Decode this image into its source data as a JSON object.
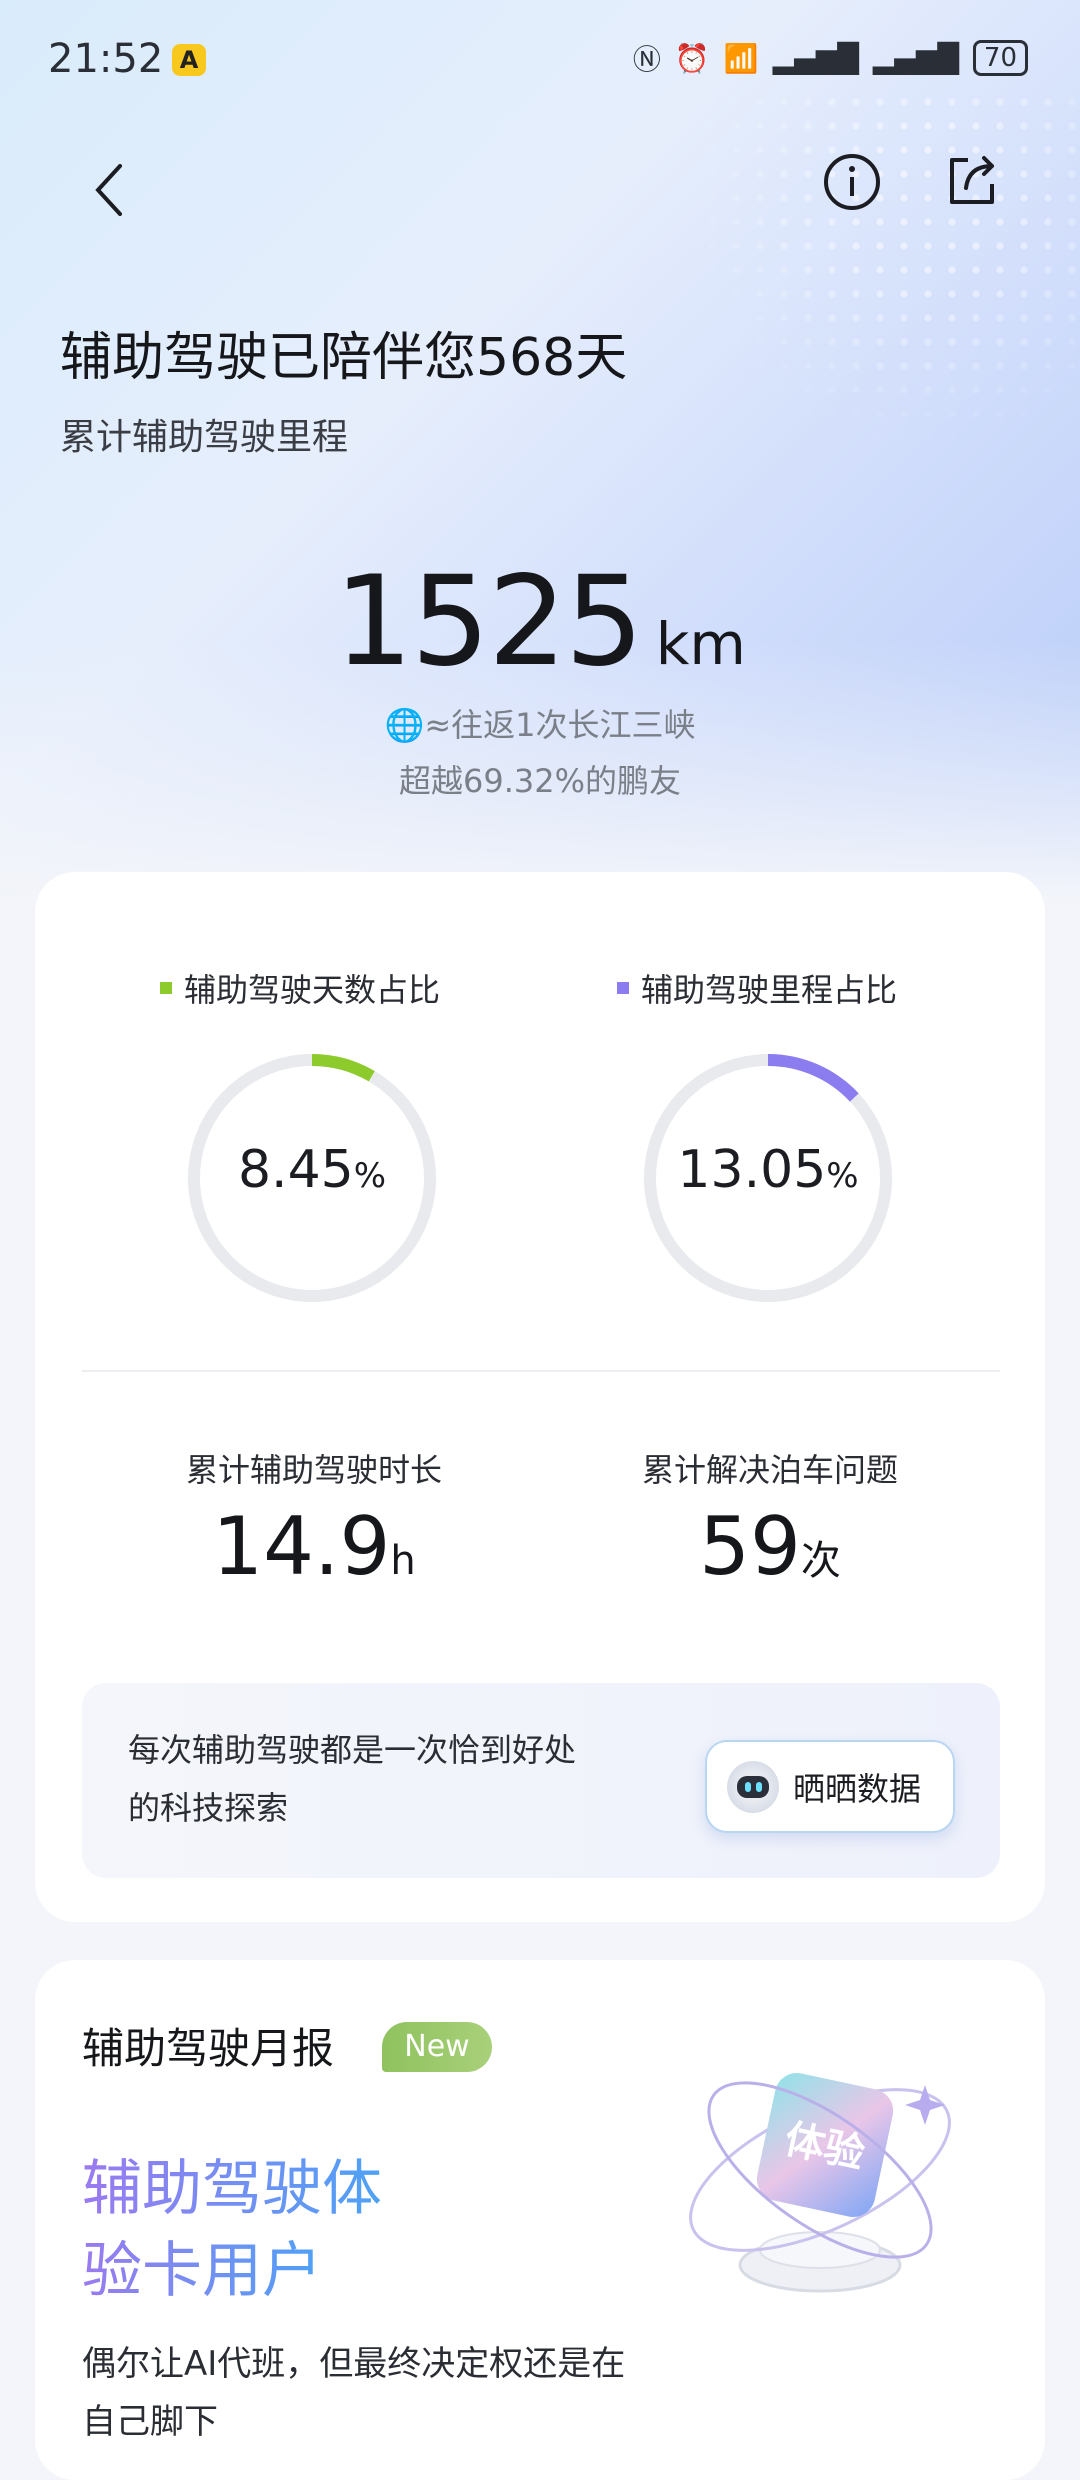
{
  "status_bar": {
    "time": "21:52",
    "app_badge": "A",
    "battery": "70"
  },
  "header": {
    "back_icon": "chevron-left-icon",
    "info_icon": "info-icon",
    "share_icon": "share-icon"
  },
  "hero": {
    "title": "辅助驾驶已陪伴您568天",
    "subtitle": "累计辅助驾驶里程",
    "distance": "1525",
    "distance_unit": "km",
    "equivalent": "≈往返1次长江三峡",
    "beat": "超越69.32%的鹏友"
  },
  "ratios": [
    {
      "label": "辅助驾驶天数占比",
      "value": "8.45",
      "unit": "%",
      "percent": 8.45,
      "color": "#8dcb2c"
    },
    {
      "label": "辅助驾驶里程占比",
      "value": "13.05",
      "unit": "%",
      "percent": 13.05,
      "color": "#8b7cf0"
    }
  ],
  "stats": [
    {
      "label": "累计辅助驾驶时长",
      "value": "14.9",
      "unit": "h"
    },
    {
      "label": "累计解决泊车问题",
      "value": "59",
      "unit": "次"
    }
  ],
  "banner": {
    "text": "每次辅助驾驶都是一次恰到好处的科技探索",
    "button": "晒晒数据"
  },
  "report": {
    "title": "辅助驾驶月报",
    "badge": "New",
    "headline_1": "辅助驾驶体",
    "headline_2": "验卡用户",
    "description": "偶尔让AI代班，但最终决定权还是在自己脚下",
    "card_art_text": "体验"
  }
}
